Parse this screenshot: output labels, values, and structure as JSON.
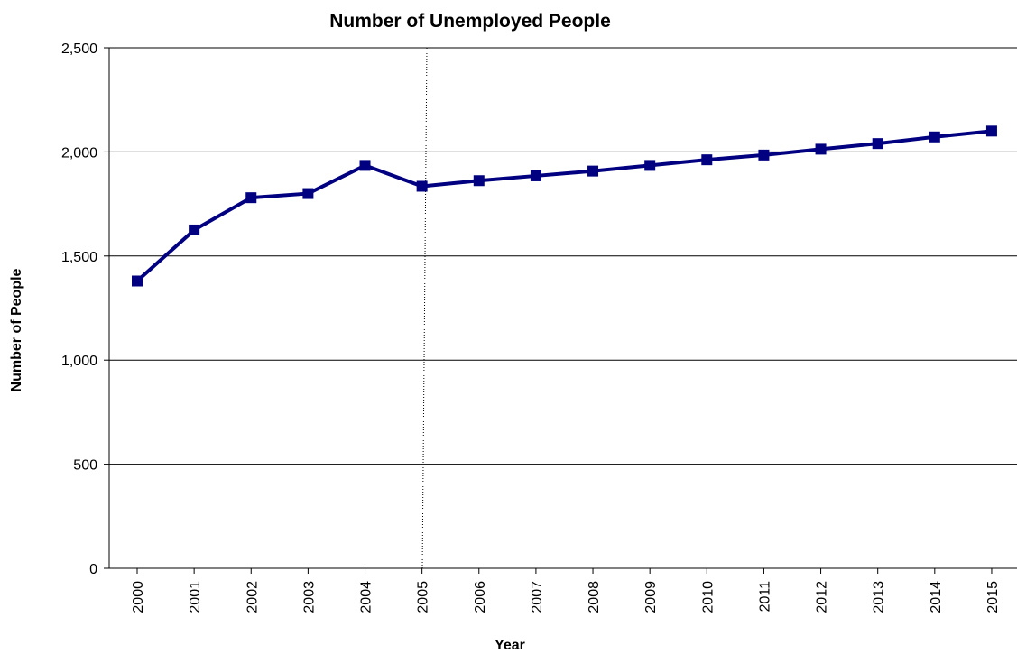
{
  "chart_data": {
    "type": "line",
    "title": "Number of Unemployed People",
    "xlabel": "Year",
    "ylabel": "Number of People",
    "categories": [
      "2000",
      "2001",
      "2002",
      "2003",
      "2004",
      "2005",
      "2006",
      "2007",
      "2008",
      "2009",
      "2010",
      "2011",
      "2012",
      "2013",
      "2014",
      "2015"
    ],
    "series": [
      {
        "values": [
          1380,
          1625,
          1780,
          1800,
          1935,
          1835,
          1862,
          1885,
          1908,
          1935,
          1962,
          1985,
          2013,
          2040,
          2072,
          2100
        ],
        "color": "#000080",
        "marker": "square"
      }
    ],
    "ylim": [
      0,
      2500
    ],
    "yticks": [
      0,
      500,
      1000,
      1500,
      2000,
      2500
    ],
    "ytick_labels": [
      "0",
      "500",
      "1,000",
      "1,500",
      "2,000",
      "2,500"
    ],
    "grid": "horizontal",
    "divider_after_category": "2005",
    "legend": "none"
  }
}
